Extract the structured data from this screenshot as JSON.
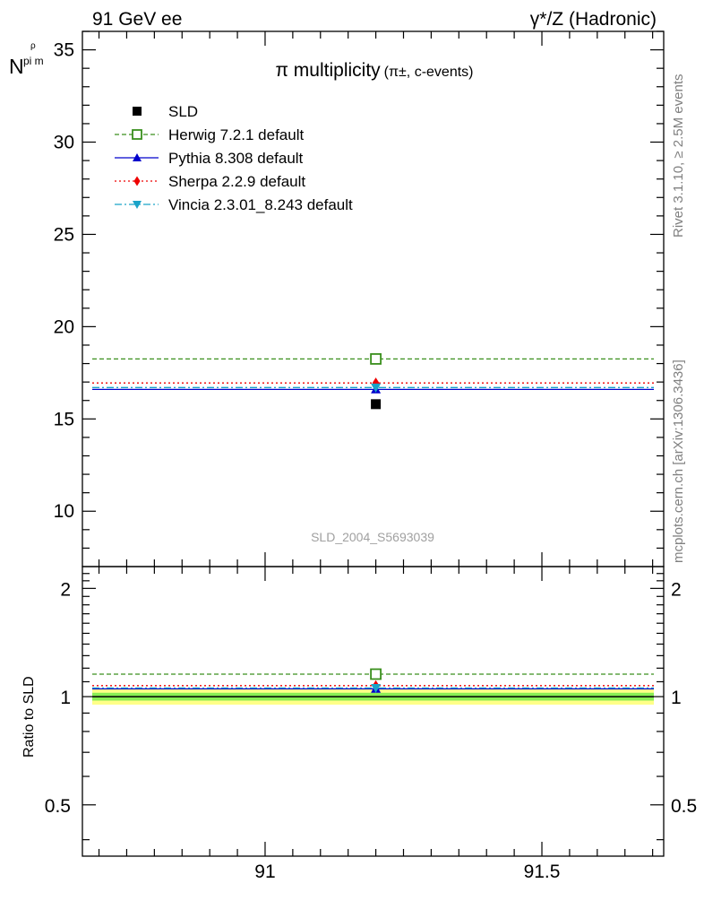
{
  "header": {
    "left": "91 GeV ee",
    "right": "γ*/Z (Hadronic)"
  },
  "side_labels": {
    "rivet": "Rivet 3.1.10, ≥ 2.5M events",
    "mcplots": "mcplots.cern.ch [arXiv:1306.3436]"
  },
  "chart_data": [
    {
      "type": "scatter",
      "panel": "main",
      "title_main": "π multiplicity",
      "title_sub": "(π±, c-events)",
      "ylabel": "N",
      "ylabel_sub": "pi m",
      "ylabel_sup": "ρ",
      "watermark": "SLD_2004_S5693039",
      "xlim": [
        90.67,
        91.72
      ],
      "ylim": [
        7,
        36
      ],
      "yticks": [
        10,
        15,
        20,
        25,
        30,
        35
      ],
      "grid": false,
      "legend_position": "top-left",
      "series": [
        {
          "name": "SLD",
          "color": "#000000",
          "marker": "square-filled",
          "line": "none",
          "x": 91.2,
          "y": 15.8
        },
        {
          "name": "Herwig 7.2.1 default",
          "color": "#3a8f1d",
          "marker": "square-open",
          "line": "dashed",
          "x": 91.2,
          "y": 18.25
        },
        {
          "name": "Pythia 8.308 default",
          "color": "#0000cc",
          "marker": "triangle-up",
          "line": "solid",
          "x": 91.2,
          "y": 16.6
        },
        {
          "name": "Sherpa 2.2.9 default",
          "color": "#ee0000",
          "marker": "diamond",
          "line": "dotted",
          "x": 91.2,
          "y": 16.95
        },
        {
          "name": "Vincia 2.3.01_8.243 default",
          "color": "#1aa3c8",
          "marker": "triangle-down",
          "line": "dashdot",
          "x": 91.2,
          "y": 16.7
        }
      ]
    },
    {
      "type": "scatter",
      "panel": "ratio",
      "ylabel": "Ratio to SLD",
      "xlim": [
        90.67,
        91.72
      ],
      "ylim": [
        0.36,
        2.3
      ],
      "log_y": true,
      "xticks": [
        91,
        91.5
      ],
      "xtick_labels": [
        "91",
        "91.5"
      ],
      "yticks": [
        0.5,
        1,
        2
      ],
      "ytick_labels": [
        "0.5",
        "1",
        "2"
      ],
      "band_inner": [
        0.975,
        1.025
      ],
      "band_outer": [
        0.95,
        1.05
      ],
      "band_colors": {
        "inner": "#88ee55",
        "outer": "#ffff88"
      },
      "series": [
        {
          "name": "Herwig 7.2.1 default",
          "y": 1.155
        },
        {
          "name": "Pythia 8.308 default",
          "y": 1.051
        },
        {
          "name": "Sherpa 2.2.9 default",
          "y": 1.073
        },
        {
          "name": "Vincia 2.3.01_8.243 default",
          "y": 1.057
        }
      ]
    }
  ]
}
